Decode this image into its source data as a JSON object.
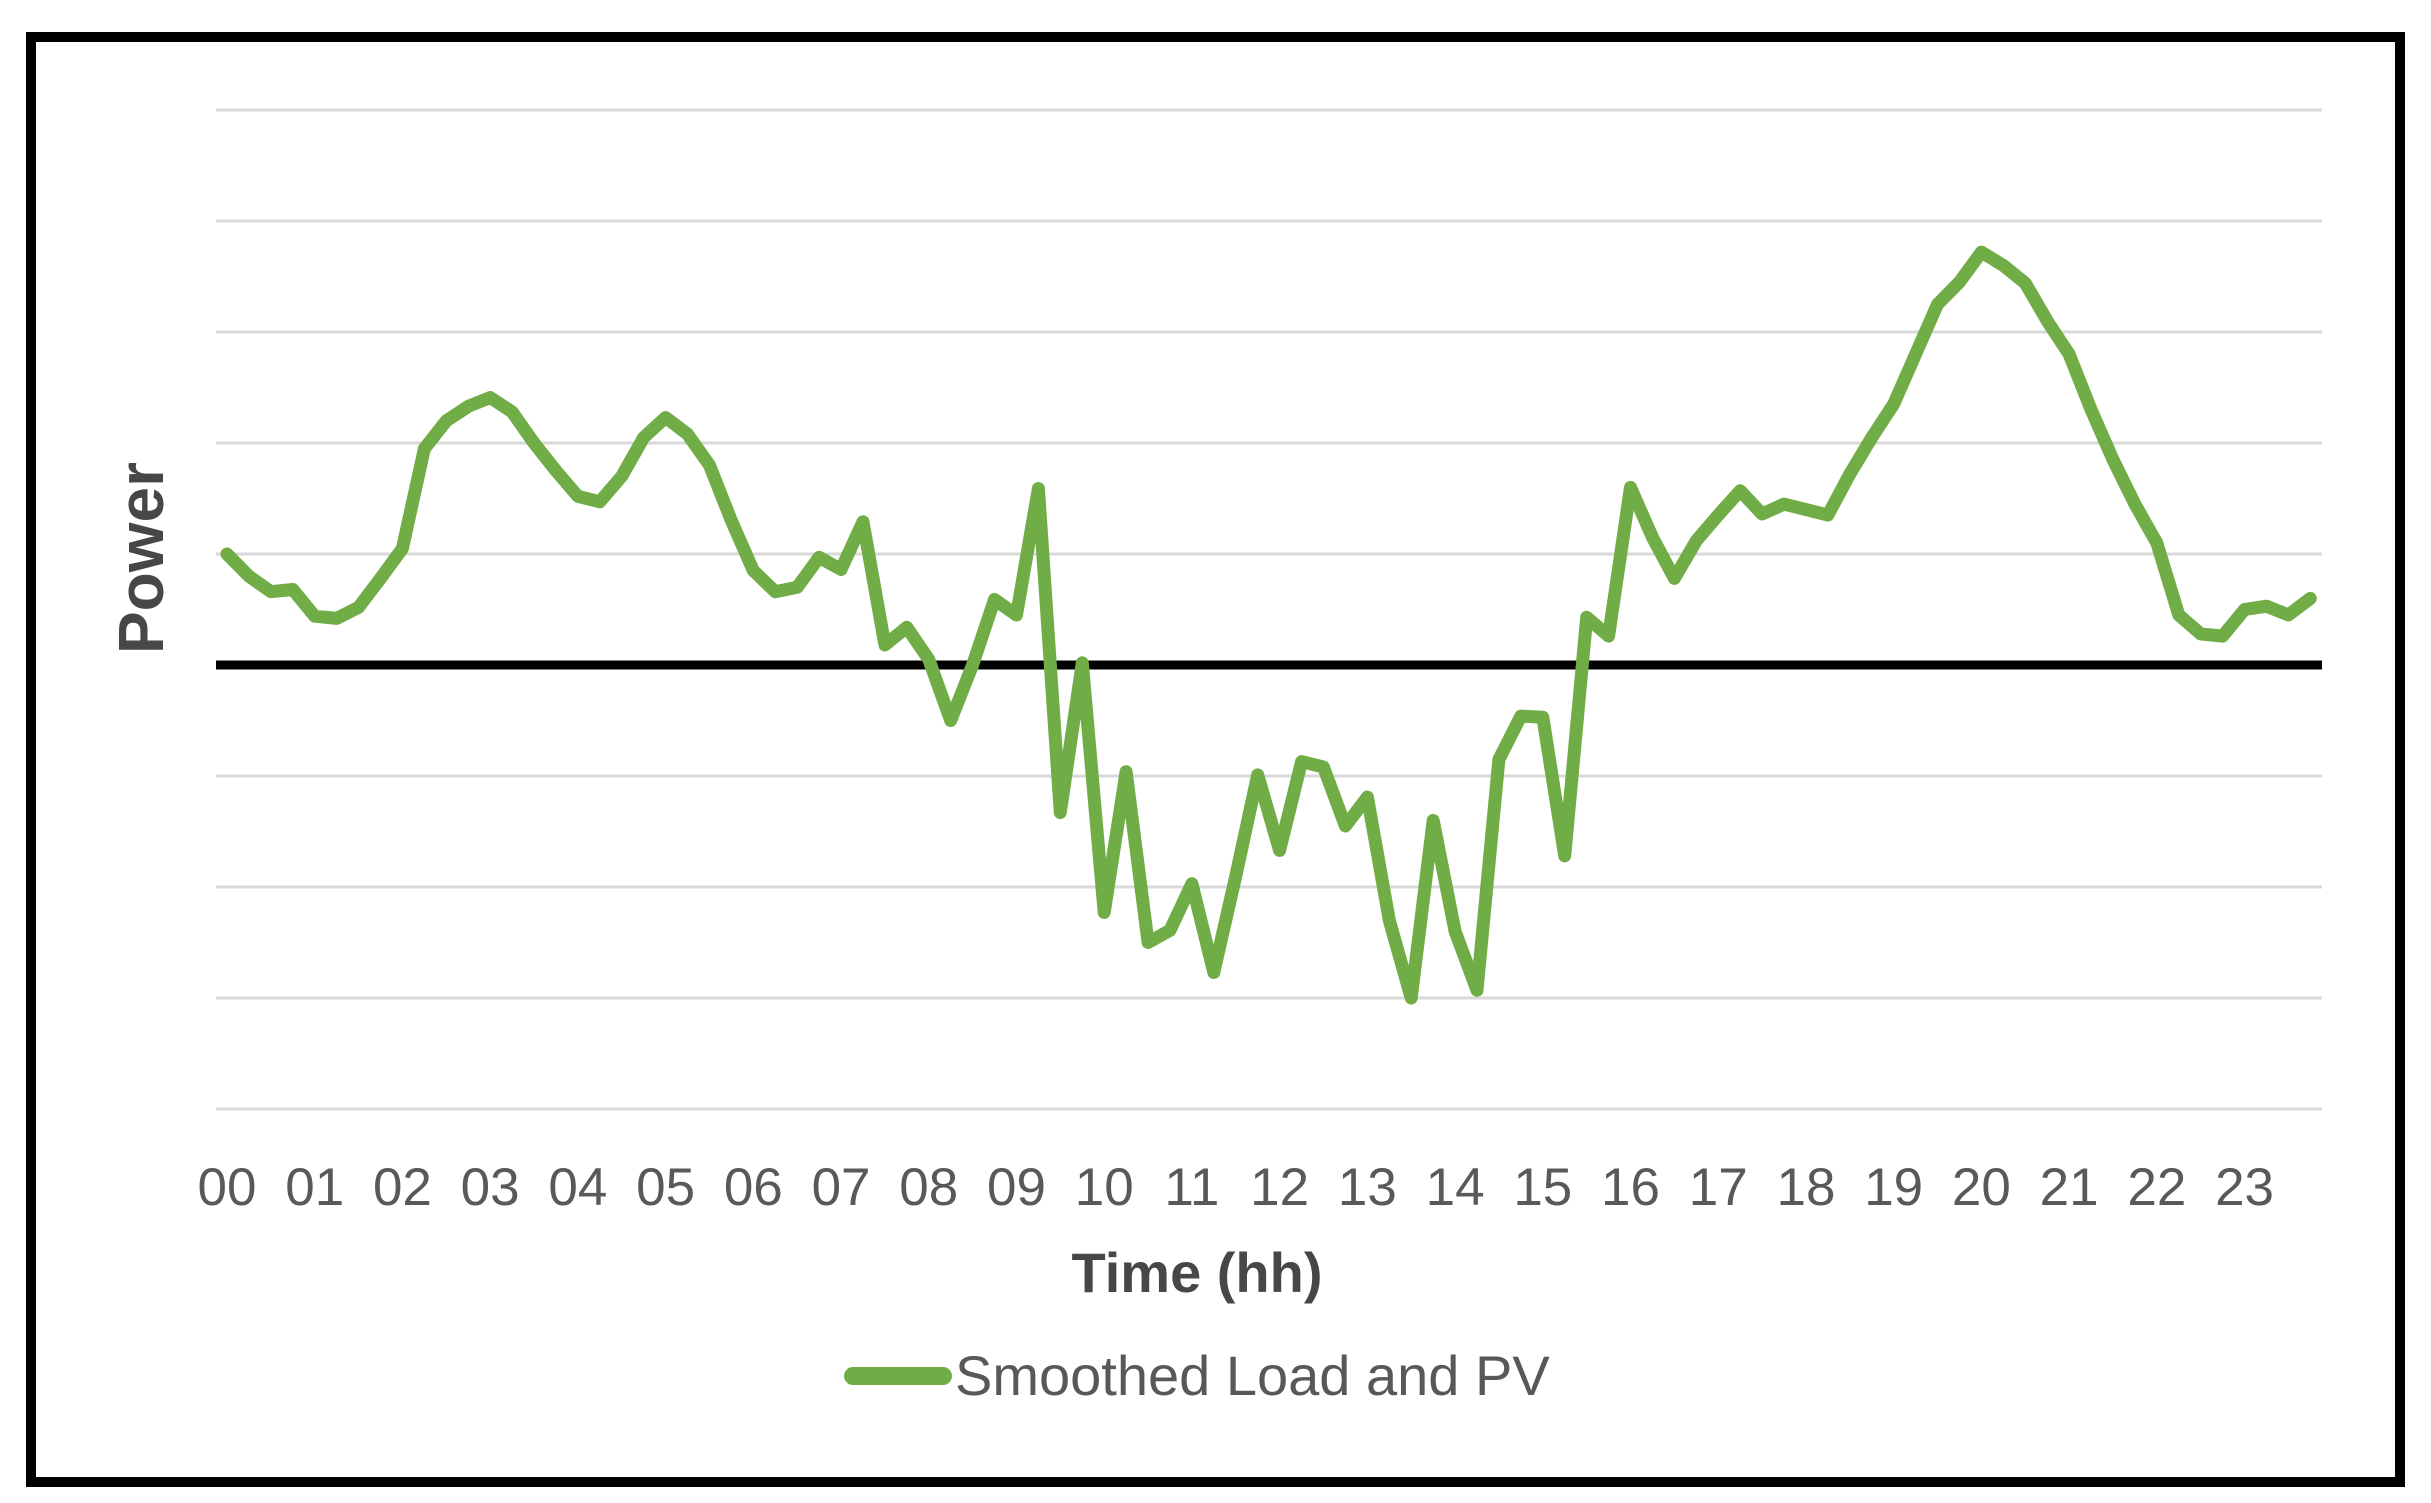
{
  "chart_data": {
    "type": "line",
    "title": "",
    "xlabel": "Time (hh)",
    "ylabel": "Power",
    "legend": {
      "position": "bottom-center",
      "entries": [
        {
          "label": "Smoothed Load and PV",
          "swatch_color": "#70AD47"
        }
      ]
    },
    "x_tick_labels": [
      "00",
      "01",
      "02",
      "03",
      "04",
      "05",
      "06",
      "07",
      "08",
      "09",
      "10",
      "11",
      "12",
      "13",
      "14",
      "15",
      "16",
      "17",
      "18",
      "19",
      "20",
      "21",
      "22",
      "23"
    ],
    "x_hours": [
      0,
      0.25,
      0.5,
      0.75,
      1,
      1.25,
      1.5,
      1.75,
      2,
      2.25,
      2.5,
      2.75,
      3,
      3.25,
      3.5,
      3.75,
      4,
      4.25,
      4.5,
      4.75,
      5,
      5.25,
      5.5,
      5.75,
      6,
      6.25,
      6.5,
      6.75,
      7,
      7.25,
      7.5,
      7.75,
      8,
      8.25,
      8.5,
      8.75,
      9,
      9.25,
      9.5,
      9.75,
      10,
      10.25,
      10.5,
      10.75,
      11,
      11.25,
      11.5,
      11.75,
      12,
      12.25,
      12.5,
      12.75,
      13,
      13.25,
      13.5,
      13.75,
      14,
      14.25,
      14.5,
      14.75,
      15,
      15.25,
      15.5,
      15.75,
      16,
      16.25,
      16.5,
      16.75,
      17,
      17.25,
      17.5,
      17.75,
      18,
      18.25,
      18.5,
      18.75,
      19,
      19.25,
      19.5,
      19.75,
      20,
      20.25,
      20.5,
      20.75,
      21,
      21.25,
      21.5,
      21.75,
      22,
      22.25,
      22.5,
      22.75,
      23,
      23.25,
      23.5,
      23.75
    ],
    "series": [
      {
        "name": "Smoothed Load and PV",
        "color": "#70AD47",
        "line_width": 13,
        "values": [
          1.0,
          0.8,
          0.66,
          0.68,
          0.44,
          0.42,
          0.52,
          0.78,
          1.05,
          1.95,
          2.2,
          2.33,
          2.41,
          2.28,
          2.0,
          1.75,
          1.52,
          1.47,
          1.7,
          2.05,
          2.23,
          2.08,
          1.8,
          1.3,
          0.85,
          0.66,
          0.7,
          0.97,
          0.86,
          1.29,
          0.18,
          0.34,
          0.05,
          -0.5,
          0.0,
          0.59,
          0.45,
          1.59,
          -1.33,
          0.02,
          -2.23,
          -0.96,
          -2.5,
          -2.39,
          -1.97,
          -2.77,
          -1.9,
          -0.99,
          -1.67,
          -0.87,
          -0.92,
          -1.45,
          -1.19,
          -2.3,
          -3.0,
          -1.4,
          -2.4,
          -2.93,
          -0.85,
          -0.46,
          -0.47,
          -1.72,
          0.43,
          0.26,
          1.6,
          1.15,
          0.78,
          1.12,
          1.35,
          1.57,
          1.36,
          1.45,
          1.4,
          1.35,
          1.72,
          2.05,
          2.35,
          2.8,
          3.25,
          3.45,
          3.72,
          3.6,
          3.44,
          3.1,
          2.8,
          2.3,
          1.85,
          1.45,
          1.1,
          0.45,
          0.28,
          0.26,
          0.5,
          0.53,
          0.45,
          0.6
        ]
      }
    ],
    "zero_line": {
      "value": 0,
      "color": "#000000"
    },
    "gridlines": {
      "values": [
        5,
        4,
        3,
        2,
        1,
        -1,
        -2,
        -3,
        -4
      ],
      "color": "#D9D9D9"
    },
    "y_axis": {
      "tick_labels_shown": false,
      "units_per_gridline": 1,
      "ymin": -4,
      "ymax": 5
    },
    "grid_on": true,
    "colors": {
      "series": "#70AD47",
      "gridline": "#D9D9D9",
      "zero_line": "#000000",
      "tick_text": "#595959",
      "axis_title_text": "#474747",
      "legend_text": "#585858",
      "border": "#000000",
      "background": "#ffffff"
    }
  }
}
